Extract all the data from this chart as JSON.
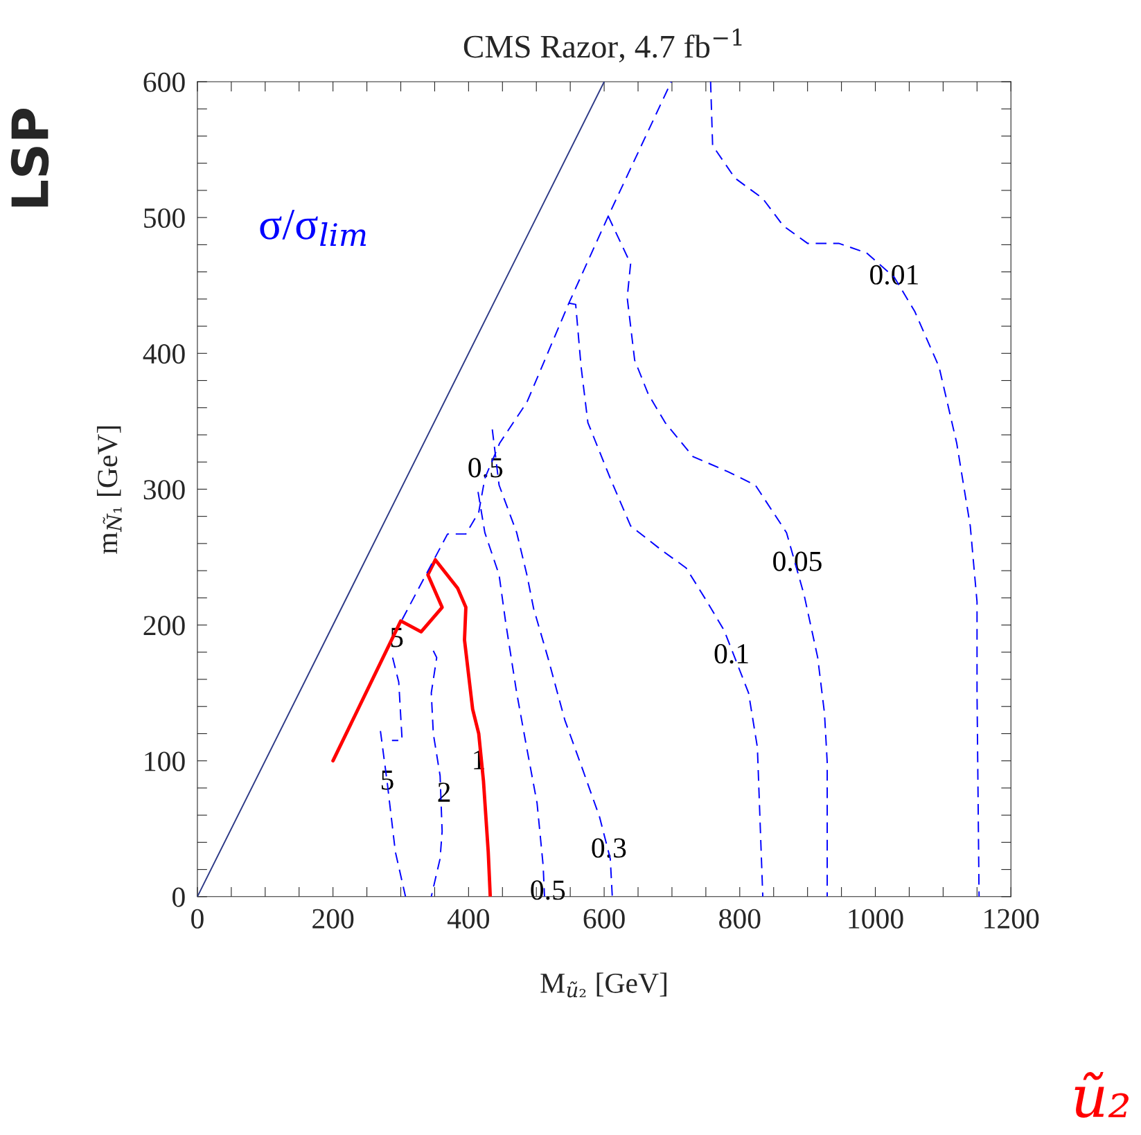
{
  "chart_data": {
    "type": "line",
    "title": "CMS Razor, 4.7 fb$^{−1}$",
    "xlabel": "M$_{ũ₂}$ [GeV]",
    "ylabel": "m$_{Ñ₁}$ [GeV]",
    "xlim": [
      0,
      1200
    ],
    "ylim": [
      0,
      600
    ],
    "xticks": [
      0,
      {
        "value": 50,
        "label": null
      },
      {
        "value": 100,
        "label": null
      },
      {
        "value": 150,
        "label": null
      },
      200,
      {
        "value": 250,
        "label": null
      },
      {
        "value": 300,
        "label": null
      },
      {
        "value": 350,
        "label": null
      },
      400,
      {
        "value": 450,
        "label": null
      },
      {
        "value": 500,
        "label": null
      },
      {
        "value": 550,
        "label": null
      },
      600,
      {
        "value": 650,
        "label": null
      },
      {
        "value": 700,
        "label": null
      },
      {
        "value": 750,
        "label": null
      },
      800,
      {
        "value": 850,
        "label": null
      },
      {
        "value": 900,
        "label": null
      },
      {
        "value": 950,
        "label": null
      },
      1000,
      {
        "value": 1050,
        "label": null
      },
      {
        "value": 1100,
        "label": null
      },
      {
        "value": 1150,
        "label": null
      },
      1200
    ],
    "yticks": [
      0,
      {
        "value": 20,
        "label": null
      },
      {
        "value": 40,
        "label": null
      },
      {
        "value": 60,
        "label": null
      },
      {
        "value": 80,
        "label": null
      },
      100,
      {
        "value": 120,
        "label": null
      },
      {
        "value": 140,
        "label": null
      },
      {
        "value": 160,
        "label": null
      },
      {
        "value": 180,
        "label": null
      },
      200,
      {
        "value": 220,
        "label": null
      },
      {
        "value": 240,
        "label": null
      },
      {
        "value": 260,
        "label": null
      },
      {
        "value": 280,
        "label": null
      },
      300,
      {
        "value": 320,
        "label": null
      },
      {
        "value": 340,
        "label": null
      },
      {
        "value": 360,
        "label": null
      },
      {
        "value": 380,
        "label": null
      },
      400,
      {
        "value": 420,
        "label": null
      },
      {
        "value": 440,
        "label": null
      },
      {
        "value": 460,
        "label": null
      },
      {
        "value": 480,
        "label": null
      },
      500,
      {
        "value": 520,
        "label": null
      },
      {
        "value": 540,
        "label": null
      },
      {
        "value": 560,
        "label": null
      },
      {
        "value": 580,
        "label": null
      },
      600
    ],
    "grid": false,
    "legend": false,
    "marker": "none",
    "series": [
      {
        "color": "#2e3a87",
        "line_style": "solid",
        "x": [
          0,
          600
        ],
        "values": [
          0,
          600
        ]
      },
      {
        "color": "#ff0000",
        "line_style": "solid",
        "x": [
          200,
          300,
          330,
          361,
          340,
          351,
          384,
          396,
          394,
          406,
          415,
          422,
          429,
          432
        ],
        "values": [
          100,
          203,
          195,
          213,
          237,
          248,
          227,
          213,
          189,
          138,
          120,
          85,
          33,
          0
        ]
      },
      {
        "color": "#0000ff",
        "line_style": "dashed",
        "x": [
          302,
          369,
          396,
          415,
          424,
          446,
          486,
          548,
          606,
          699
        ],
        "values": [
          204,
          267,
          267,
          283,
          308,
          334,
          364,
          437,
          501,
          600
        ]
      },
      {
        "color": "#0000ff",
        "line_style": "dashed",
        "x": [
          757,
          760,
          793,
          834,
          864,
          900,
          946,
          987,
          1028,
          1058,
          1094,
          1120,
          1140,
          1150,
          1150,
          1153
        ],
        "values": [
          600,
          553,
          529,
          514,
          494,
          481,
          481,
          474,
          456,
          431,
          390,
          334,
          273,
          217,
          150,
          0
        ]
      },
      {
        "color": "#0000ff",
        "line_style": "dashed",
        "x": [
          606,
          639,
          634,
          645,
          665,
          690,
          731,
          782,
          823,
          869,
          895,
          915,
          925,
          929,
          929
        ],
        "values": [
          501,
          466,
          441,
          395,
          370,
          349,
          324,
          313,
          303,
          268,
          222,
          176,
          135,
          99,
          0
        ]
      },
      {
        "color": "#0000ff",
        "line_style": "dashed",
        "x": [
          548,
          558,
          566,
          576,
          609,
          639,
          685,
          721,
          752,
          777,
          813,
          826,
          834
        ],
        "values": [
          437,
          436,
          390,
          349,
          308,
          273,
          255,
          242,
          217,
          196,
          150,
          110,
          0
        ]
      },
      {
        "color": "#0000ff",
        "line_style": "dashed",
        "x": [
          435,
          445,
          471,
          486,
          496,
          517,
          542,
          568,
          593,
          609,
          612
        ],
        "values": [
          344,
          303,
          268,
          237,
          212,
          176,
          130,
          94,
          59,
          28,
          0
        ]
      },
      {
        "color": "#0000ff",
        "line_style": "dashed",
        "x": [
          414,
          424,
          445,
          455,
          471,
          486,
          501,
          510,
          512
        ],
        "values": [
          298,
          268,
          237,
          201,
          150,
          109,
          69,
          23,
          0
        ]
      },
      {
        "color": "#0000ff",
        "line_style": "dashed",
        "x": [
          348,
          353,
          345,
          348,
          358,
          361,
          358,
          345
        ],
        "values": [
          181,
          176,
          150,
          120,
          89,
          48,
          28,
          0
        ]
      },
      {
        "color": "#0000ff",
        "line_style": "dashed",
        "x": [
          288,
          297,
          302,
          287
        ],
        "values": [
          176,
          158,
          115,
          115
        ]
      },
      {
        "color": "#0000ff",
        "line_style": "dashed",
        "x": [
          270,
          280,
          292,
          307
        ],
        "values": [
          122,
          84,
          33,
          0
        ]
      }
    ],
    "annotations": [
      {
        "text": "0.01",
        "x": 1028,
        "y": 456
      },
      {
        "text": "0.05",
        "x": 885,
        "y": 245
      },
      {
        "text": "0.1",
        "x": 788,
        "y": 177
      },
      {
        "text": "0.3",
        "x": 607,
        "y": 34
      },
      {
        "text": "0.5",
        "x": 425,
        "y": 314
      },
      {
        "text": "0.5",
        "x": 517,
        "y": 3
      },
      {
        "text": "1",
        "x": 415,
        "y": 99
      },
      {
        "text": "2",
        "x": 364,
        "y": 75
      },
      {
        "text": "5",
        "x": 280,
        "y": 84
      },
      {
        "text": "5",
        "x": 294,
        "y": 189
      },
      "σ/σ$_{lim}$",
      "LSP",
      "ũ₂"
    ]
  }
}
